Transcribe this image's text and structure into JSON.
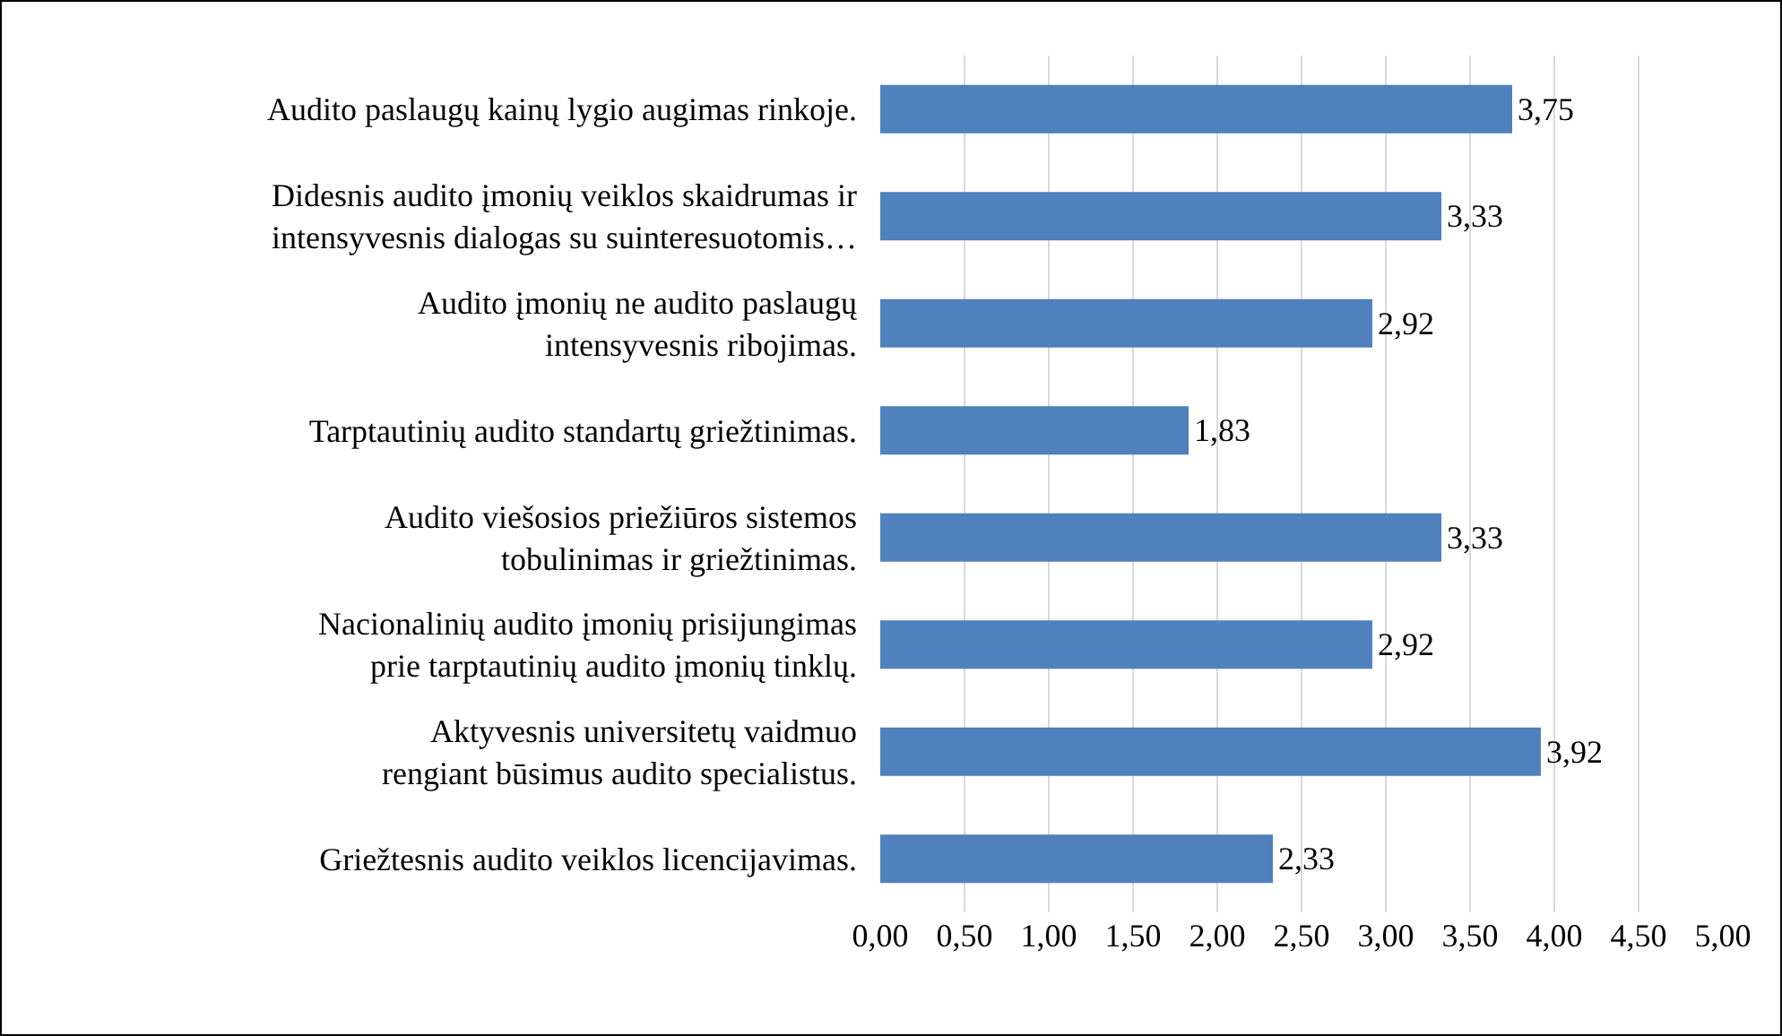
{
  "chart_data": {
    "type": "bar",
    "orientation": "horizontal",
    "categories": [
      "Audito paslaugų kainų lygio augimas rinkoje.",
      "Didesnis audito įmonių veiklos skaidrumas ir intensyvesnis dialogas su suinteresuotomis…",
      "Audito įmonių ne audito paslaugų intensyvesnis ribojimas.",
      "Tarptautinių audito standartų griežtinimas.",
      "Audito viešosios priežiūros sistemos tobulinimas ir griežtinimas.",
      "Nacionalinių audito įmonių prisijungimas prie tarptautinių audito įmonių tinklų.",
      "Aktyvesnis universitetų vaidmuo rengiant būsimus audito specialistus.",
      "Griežtesnis audito veiklos licencijavimas."
    ],
    "values": [
      3.75,
      3.33,
      2.92,
      1.83,
      3.33,
      2.92,
      3.92,
      2.33
    ],
    "value_labels": [
      "3,75",
      "3,33",
      "2,92",
      "1,83",
      "3,33",
      "2,92",
      "3,92",
      "2,33"
    ],
    "color": "#4f81bd",
    "xlim": [
      0,
      5
    ],
    "xticks": [
      {
        "value": 0,
        "label": "0,00"
      },
      {
        "value": 0.5,
        "label": "0,50"
      },
      {
        "value": 1,
        "label": "1,00"
      },
      {
        "value": 1.5,
        "label": "1,50"
      },
      {
        "value": 2,
        "label": "2,00"
      },
      {
        "value": 2.5,
        "label": "2,50"
      },
      {
        "value": 3,
        "label": "3,00"
      },
      {
        "value": 3.5,
        "label": "3,50"
      },
      {
        "value": 4,
        "label": "4,00"
      },
      {
        "value": 4.5,
        "label": "4,50"
      },
      {
        "value": 5,
        "label": "5,00"
      }
    ],
    "grid": "x",
    "legend": false
  }
}
